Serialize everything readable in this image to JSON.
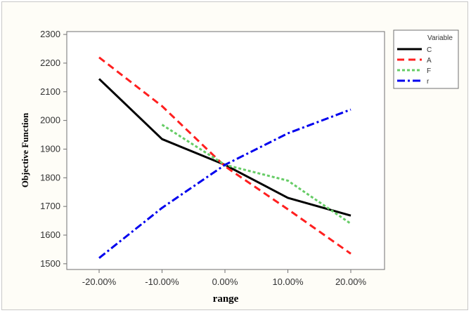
{
  "chart_data": {
    "type": "line",
    "title": "",
    "xlabel": "range",
    "ylabel": "Objective Function",
    "categories": [
      "-20.00%",
      "-10.00%",
      "0.00%",
      "10.00%",
      "20.00%"
    ],
    "ylim": [
      1480,
      2310
    ],
    "yticks": [
      "1500",
      "1600",
      "1700",
      "1800",
      "1900",
      "2000",
      "2100",
      "2200",
      "2300"
    ],
    "grid": false,
    "legend": {
      "title": "Variable",
      "placement": "top-right, outside plot area"
    },
    "series": [
      {
        "name": "C",
        "color": "#000000",
        "style": "solid",
        "values": [
          2145,
          1935,
          1845,
          1730,
          1668
        ]
      },
      {
        "name": "A",
        "color": "#ff1f1f",
        "style": "dashed",
        "values": [
          2220,
          2050,
          1840,
          1690,
          1535
        ]
      },
      {
        "name": "F",
        "color": "#66cc66",
        "style": "dotted",
        "values": [
          null,
          1985,
          1845,
          1790,
          1640
        ]
      },
      {
        "name": "r",
        "color": "#0000ee",
        "style": "dash-dot",
        "values": [
          1520,
          1695,
          1845,
          1955,
          2038
        ]
      }
    ]
  }
}
